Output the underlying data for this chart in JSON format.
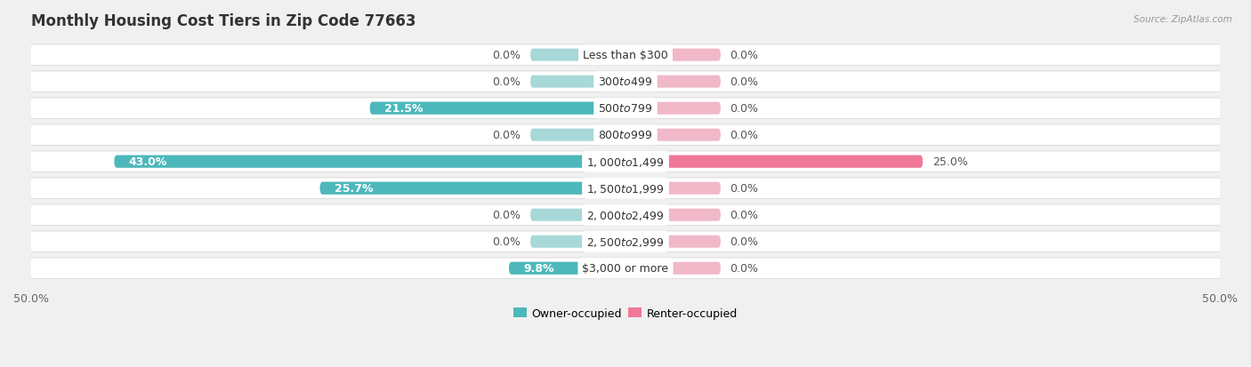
{
  "title": "Monthly Housing Cost Tiers in Zip Code 77663",
  "source": "Source: ZipAtlas.com",
  "categories": [
    "Less than $300",
    "$300 to $499",
    "$500 to $799",
    "$800 to $999",
    "$1,000 to $1,499",
    "$1,500 to $1,999",
    "$2,000 to $2,499",
    "$2,500 to $2,999",
    "$3,000 or more"
  ],
  "owner_values": [
    0.0,
    0.0,
    21.5,
    0.0,
    43.0,
    25.7,
    0.0,
    0.0,
    9.8
  ],
  "renter_values": [
    0.0,
    0.0,
    0.0,
    0.0,
    25.0,
    0.0,
    0.0,
    0.0,
    0.0
  ],
  "owner_color": "#4db8bb",
  "renter_color": "#f07898",
  "owner_stub_color": "#a8d8d8",
  "renter_stub_color": "#f0b8c8",
  "row_bg_color": "#ffffff",
  "row_border_color": "#d8d8d8",
  "background_color": "#f0f0f0",
  "axis_limit": 50.0,
  "stub_size": 8.0,
  "title_fontsize": 12,
  "label_fontsize": 9,
  "value_fontsize": 9,
  "tick_fontsize": 9,
  "legend_fontsize": 9
}
